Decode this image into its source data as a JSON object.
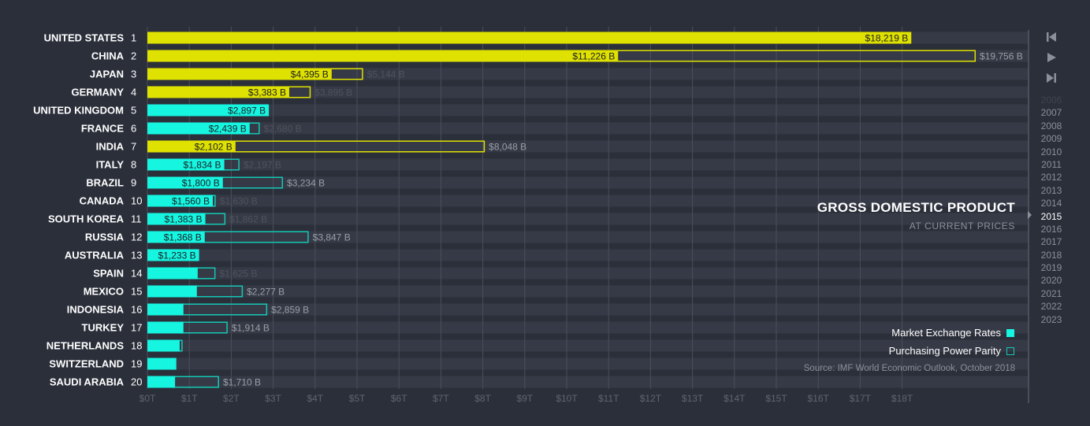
{
  "chart_data": {
    "type": "bar",
    "orientation": "horizontal",
    "title": "GROSS DOMESTIC PRODUCT",
    "subtitle": "AT CURRENT PRICES",
    "source": "Source: IMF World Economic Outlook, October 2018",
    "x_ticks": [
      "$0T",
      "$1T",
      "$2T",
      "$3T",
      "$4T",
      "$5T",
      "$6T",
      "$7T",
      "$8T",
      "$9T",
      "$10T",
      "$11T",
      "$12T",
      "$13T",
      "$14T",
      "$15T",
      "$16T",
      "$17T",
      "$18T"
    ],
    "xlim": [
      0,
      18
    ],
    "unit": "billion USD",
    "colors": {
      "g7": "#dfe100",
      "other": "#15f5e0",
      "ppp_other_outline": "#15c8b5",
      "background": "#2b2f3a"
    },
    "legend": [
      {
        "key": "mer",
        "label": "Market Exchange Rates"
      },
      {
        "key": "ppp",
        "label": "Purchasing Power Parity"
      }
    ],
    "rows": [
      {
        "rank": "1",
        "country": "UNITED STATES",
        "mer": 18219,
        "mer_label": "$18,219 B",
        "ppp": 18219,
        "ppp_label": "",
        "g7": true,
        "dim": false
      },
      {
        "rank": "2",
        "country": "CHINA",
        "mer": 11226,
        "mer_label": "$11,226 B",
        "ppp": 19756,
        "ppp_label": "$19,756 B",
        "g7": true,
        "dim": false
      },
      {
        "rank": "3",
        "country": "JAPAN",
        "mer": 4395,
        "mer_label": "$4,395 B",
        "ppp": 5144,
        "ppp_label": "$5,144 B",
        "g7": true,
        "dim": true
      },
      {
        "rank": "4",
        "country": "GERMANY",
        "mer": 3383,
        "mer_label": "$3,383 B",
        "ppp": 3895,
        "ppp_label": "$3,895 B",
        "g7": true,
        "dim": true
      },
      {
        "rank": "5",
        "country": "UNITED KINGDOM",
        "mer": 2897,
        "mer_label": "$2,897 B",
        "ppp": 2897,
        "ppp_label": "",
        "g7": false,
        "dim": false
      },
      {
        "rank": "6",
        "country": "FRANCE",
        "mer": 2439,
        "mer_label": "$2,439 B",
        "ppp": 2680,
        "ppp_label": "$2,680 B",
        "g7": false,
        "dim": true
      },
      {
        "rank": "7",
        "country": "INDIA",
        "mer": 2102,
        "mer_label": "$2,102 B",
        "ppp": 8048,
        "ppp_label": "$8,048 B",
        "g7": true,
        "dim": false
      },
      {
        "rank": "8",
        "country": "ITALY",
        "mer": 1834,
        "mer_label": "$1,834 B",
        "ppp": 2197,
        "ppp_label": "$2,197 B",
        "g7": false,
        "dim": true
      },
      {
        "rank": "9",
        "country": "BRAZIL",
        "mer": 1800,
        "mer_label": "$1,800 B",
        "ppp": 3234,
        "ppp_label": "$3,234 B",
        "g7": false,
        "dim": false
      },
      {
        "rank": "10",
        "country": "CANADA",
        "mer": 1560,
        "mer_label": "$1,560 B",
        "ppp": 1630,
        "ppp_label": "$1,630 B",
        "g7": false,
        "dim": true
      },
      {
        "rank": "11",
        "country": "SOUTH KOREA",
        "mer": 1383,
        "mer_label": "$1,383 B",
        "ppp": 1862,
        "ppp_label": "$1,862 B",
        "g7": false,
        "dim": true
      },
      {
        "rank": "12",
        "country": "RUSSIA",
        "mer": 1368,
        "mer_label": "$1,368 B",
        "ppp": 3847,
        "ppp_label": "$3,847 B",
        "g7": false,
        "dim": false
      },
      {
        "rank": "13",
        "country": "AUSTRALIA",
        "mer": 1233,
        "mer_label": "$1,233 B",
        "ppp": 1233,
        "ppp_label": "",
        "g7": false,
        "dim": true,
        "label_muted": true
      },
      {
        "rank": "14",
        "country": "SPAIN",
        "mer": 1200,
        "mer_label": "",
        "ppp": 1625,
        "ppp_label": "$1,625 B",
        "g7": false,
        "dim": true
      },
      {
        "rank": "15",
        "country": "MEXICO",
        "mer": 1180,
        "mer_label": "",
        "ppp": 2277,
        "ppp_label": "$2,277 B",
        "g7": false,
        "dim": false
      },
      {
        "rank": "16",
        "country": "INDONESIA",
        "mer": 860,
        "mer_label": "",
        "ppp": 2859,
        "ppp_label": "$2,859 B",
        "g7": false,
        "dim": false
      },
      {
        "rank": "17",
        "country": "TURKEY",
        "mer": 860,
        "mer_label": "",
        "ppp": 1914,
        "ppp_label": "$1,914 B",
        "g7": false,
        "dim": false
      },
      {
        "rank": "18",
        "country": "NETHERLANDS",
        "mer": 770,
        "mer_label": "",
        "ppp": 840,
        "ppp_label": "",
        "g7": false,
        "dim": false
      },
      {
        "rank": "19",
        "country": "SWITZERLAND",
        "mer": 690,
        "mer_label": "",
        "ppp": 690,
        "ppp_label": "",
        "g7": false,
        "dim": false
      },
      {
        "rank": "20",
        "country": "SAUDI ARABIA",
        "mer": 660,
        "mer_label": "",
        "ppp": 1710,
        "ppp_label": "$1,710 B",
        "g7": false,
        "dim": false
      }
    ]
  },
  "timeline": {
    "years": [
      "2006",
      "2007",
      "2008",
      "2009",
      "2010",
      "2011",
      "2012",
      "2013",
      "2014",
      "2015",
      "2016",
      "2017",
      "2018",
      "2019",
      "2020",
      "2021",
      "2022",
      "2023"
    ],
    "current": "2015"
  },
  "controls": {
    "first_icon": "skip-back-icon",
    "play_icon": "play-icon",
    "last_icon": "skip-forward-icon"
  }
}
